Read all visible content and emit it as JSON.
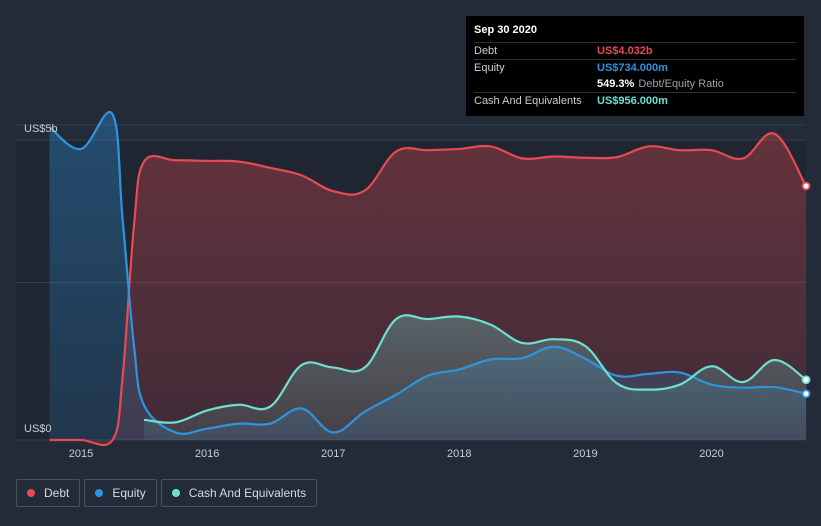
{
  "chart_data": {
    "type": "area",
    "y_axis": {
      "top_label": "US$5b",
      "bottom_label": "US$0",
      "ylim": [
        0,
        5.0
      ]
    },
    "x_ticks": [
      "2015",
      "2016",
      "2017",
      "2018",
      "2019",
      "2020"
    ],
    "x_range": [
      2014.5,
      2020.75
    ],
    "grid": true,
    "legend_position": "bottom-left",
    "series": [
      {
        "name": "Debt",
        "key": "debt",
        "color": "#e84a52",
        "x": [
          2014.75,
          2015.0,
          2015.25,
          2015.33,
          2015.42,
          2015.5,
          2015.75,
          2016.0,
          2016.25,
          2016.5,
          2016.75,
          2017.0,
          2017.25,
          2017.5,
          2017.75,
          2018.0,
          2018.25,
          2018.5,
          2018.75,
          2019.0,
          2019.25,
          2019.5,
          2019.75,
          2020.0,
          2020.25,
          2020.5,
          2020.75
        ],
        "values": [
          0,
          0,
          0,
          1.0,
          3.4,
          4.42,
          4.44,
          4.43,
          4.42,
          4.32,
          4.2,
          3.95,
          3.96,
          4.58,
          4.6,
          4.62,
          4.66,
          4.47,
          4.5,
          4.48,
          4.49,
          4.66,
          4.6,
          4.6,
          4.47,
          4.86,
          4.032
        ]
      },
      {
        "name": "Equity",
        "key": "equity",
        "color": "#2e94e0",
        "x": [
          2014.75,
          2015.0,
          2015.25,
          2015.33,
          2015.42,
          2015.5,
          2015.75,
          2016.0,
          2016.25,
          2016.5,
          2016.75,
          2017.0,
          2017.25,
          2017.5,
          2017.75,
          2018.0,
          2018.25,
          2018.5,
          2018.75,
          2019.0,
          2019.25,
          2019.5,
          2019.75,
          2020.0,
          2020.25,
          2020.5,
          2020.75
        ],
        "values": [
          4.97,
          4.62,
          5.17,
          3.5,
          1.5,
          0.55,
          0.12,
          0.18,
          0.26,
          0.26,
          0.5,
          0.12,
          0.45,
          0.72,
          1.02,
          1.12,
          1.28,
          1.3,
          1.48,
          1.29,
          1.02,
          1.05,
          1.07,
          0.88,
          0.83,
          0.84,
          0.734
        ]
      },
      {
        "name": "Cash And Equivalents",
        "key": "cash",
        "color": "#6ee0d0",
        "x": [
          2015.5,
          2015.75,
          2016.0,
          2016.25,
          2016.5,
          2016.75,
          2017.0,
          2017.25,
          2017.5,
          2017.75,
          2018.0,
          2018.25,
          2018.5,
          2018.75,
          2019.0,
          2019.25,
          2019.5,
          2019.75,
          2020.0,
          2020.25,
          2020.5,
          2020.75
        ],
        "values": [
          0.32,
          0.28,
          0.47,
          0.56,
          0.53,
          1.19,
          1.15,
          1.15,
          1.92,
          1.92,
          1.96,
          1.83,
          1.54,
          1.6,
          1.49,
          0.9,
          0.8,
          0.88,
          1.17,
          0.92,
          1.27,
          0.956
        ]
      }
    ]
  },
  "tooltip": {
    "date": "Sep 30 2020",
    "rows": [
      {
        "label": "Debt",
        "value": "US$4.032b",
        "color": "#e84a52"
      },
      {
        "label": "Equity",
        "value": "US$734.000m",
        "color": "#2e94e0"
      },
      {
        "ratio_value": "549.3%",
        "ratio_label": "Debt/Equity Ratio"
      },
      {
        "label": "Cash And Equivalents",
        "value": "US$956.000m",
        "color": "#6ee0d0"
      }
    ]
  },
  "legend": [
    {
      "label": "Debt",
      "color": "#e84a52"
    },
    {
      "label": "Equity",
      "color": "#2e94e0"
    },
    {
      "label": "Cash And Equivalents",
      "color": "#6ee0d0"
    }
  ]
}
